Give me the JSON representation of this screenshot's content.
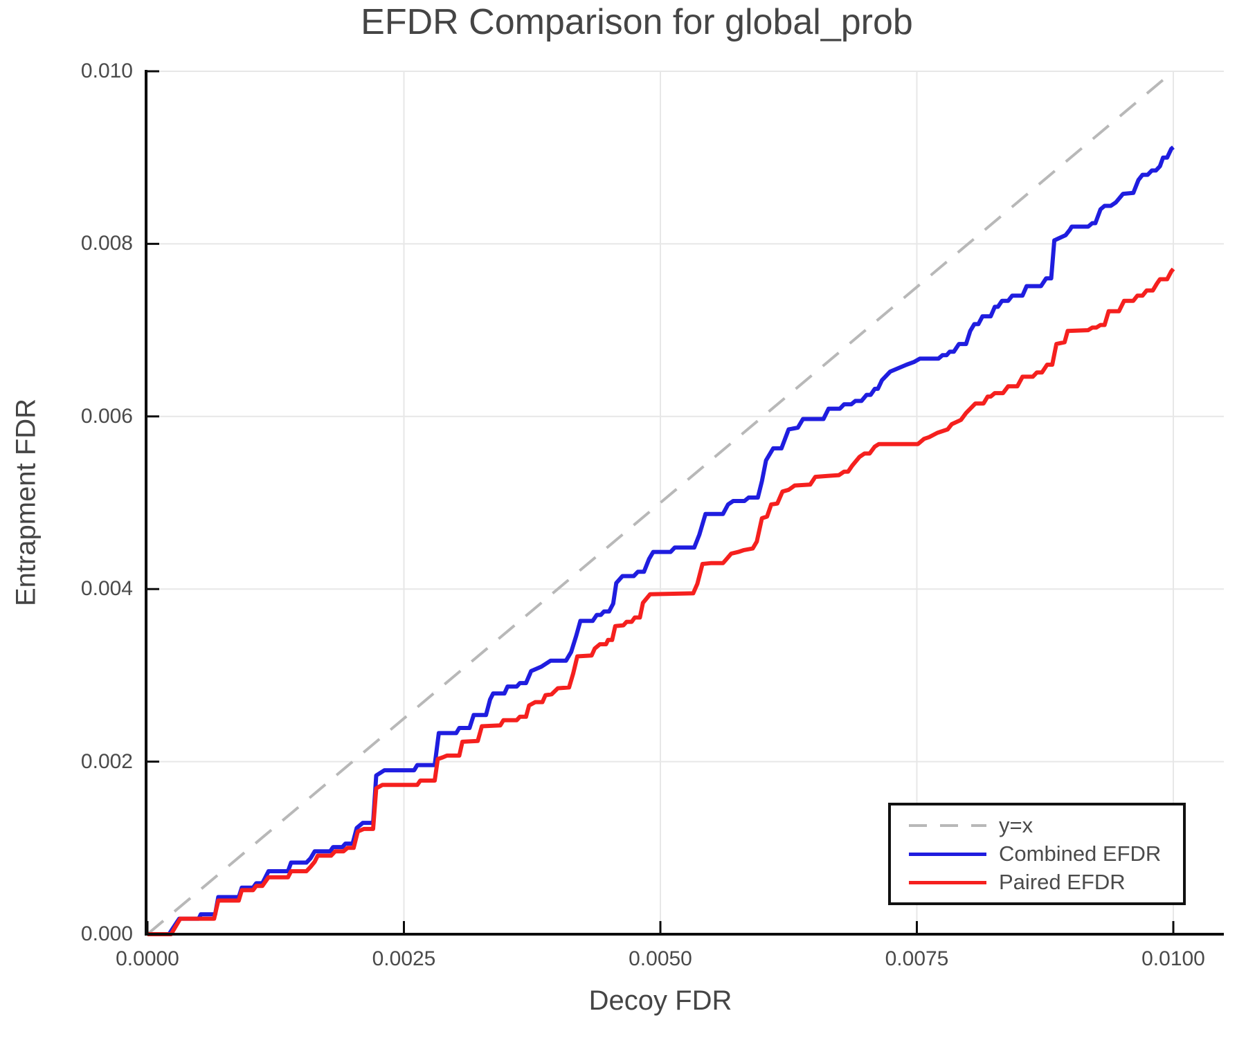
{
  "chart_data": {
    "type": "line",
    "title": "EFDR Comparison for global_prob",
    "xlabel": "Decoy FDR",
    "ylabel": "Entrapment FDR",
    "grid": true,
    "background": "#ffffff",
    "spine_color": "#0d0d0d",
    "grid_color": "#e7e7e7",
    "units_note": "series points are [x,y] in FDR units of 1e-4 (i.e. 100 = 0.0100)",
    "x_axis": {
      "range": [
        0,
        0.0105
      ],
      "tick_values": [
        0,
        25,
        50,
        75,
        100
      ],
      "tick_labels": [
        "0.0000",
        "0.0025",
        "0.0050",
        "0.0075",
        "0.0100"
      ]
    },
    "y_axis": {
      "range": [
        0,
        0.01
      ],
      "tick_values": [
        0,
        20,
        40,
        60,
        80,
        100
      ],
      "tick_labels": [
        "0.000",
        "0.002",
        "0.004",
        "0.006",
        "0.008",
        "0.010"
      ]
    },
    "legend": {
      "position": "bottom-right",
      "entries": [
        {
          "label": "y=x",
          "color": "#b8b8b8",
          "style": "dashed"
        },
        {
          "label": "Combined EFDR",
          "color": "#1f1ddf",
          "style": "solid"
        },
        {
          "label": "Paired EFDR",
          "color": "#f5201e",
          "style": "solid"
        }
      ]
    },
    "series": [
      {
        "name": "y=x",
        "color": "#b8b8b8",
        "dashed": true,
        "width": 4,
        "points": [
          [
            0,
            0
          ],
          [
            100,
            100
          ]
        ]
      },
      {
        "name": "Combined EFDR",
        "color": "#1f1ddf",
        "dashed": false,
        "width": 6,
        "points": [
          [
            0,
            0
          ],
          [
            2.1,
            0
          ],
          [
            3.1,
            1.8
          ],
          [
            5,
            1.8
          ],
          [
            5.2,
            2.3
          ],
          [
            6.6,
            2.3
          ],
          [
            6.9,
            4.3
          ],
          [
            8.9,
            4.3
          ],
          [
            9.2,
            5.4
          ],
          [
            10.3,
            5.4
          ],
          [
            10.6,
            5.9
          ],
          [
            11.2,
            5.9
          ],
          [
            11.8,
            7.3
          ],
          [
            13.7,
            7.3
          ],
          [
            14,
            8.3
          ],
          [
            15.5,
            8.3
          ],
          [
            15.9,
            8.8
          ],
          [
            16.3,
            9.6
          ],
          [
            17.8,
            9.6
          ],
          [
            18.1,
            10.1
          ],
          [
            19,
            10.1
          ],
          [
            19.3,
            10.5
          ],
          [
            20,
            10.5
          ],
          [
            20.4,
            12.3
          ],
          [
            21,
            12.9
          ],
          [
            22,
            12.9
          ],
          [
            22.3,
            18.4
          ],
          [
            23.1,
            19
          ],
          [
            26,
            19
          ],
          [
            26.3,
            19.6
          ],
          [
            28,
            19.6
          ],
          [
            28.4,
            23.3
          ],
          [
            30.1,
            23.3
          ],
          [
            30.4,
            23.9
          ],
          [
            31.4,
            23.9
          ],
          [
            31.8,
            25.4
          ],
          [
            33,
            25.4
          ],
          [
            33.4,
            27.2
          ],
          [
            33.7,
            27.9
          ],
          [
            34.8,
            27.9
          ],
          [
            35.1,
            28.7
          ],
          [
            36,
            28.7
          ],
          [
            36.3,
            29.1
          ],
          [
            36.9,
            29.1
          ],
          [
            37.4,
            30.5
          ],
          [
            38.4,
            31
          ],
          [
            39.3,
            31.7
          ],
          [
            40.8,
            31.7
          ],
          [
            41.3,
            32.7
          ],
          [
            41.8,
            34.6
          ],
          [
            42.2,
            36.3
          ],
          [
            43.4,
            36.3
          ],
          [
            43.8,
            37
          ],
          [
            44.2,
            37
          ],
          [
            44.5,
            37.4
          ],
          [
            45,
            37.4
          ],
          [
            45.4,
            38.3
          ],
          [
            45.7,
            40.7
          ],
          [
            46.3,
            41.5
          ],
          [
            47.4,
            41.5
          ],
          [
            47.8,
            42
          ],
          [
            48.4,
            42
          ],
          [
            48.9,
            43.5
          ],
          [
            49.3,
            44.3
          ],
          [
            51,
            44.3
          ],
          [
            51.4,
            44.8
          ],
          [
            53.3,
            44.8
          ],
          [
            53.8,
            46.3
          ],
          [
            54.4,
            48.7
          ],
          [
            56.1,
            48.7
          ],
          [
            56.6,
            49.8
          ],
          [
            57.1,
            50.2
          ],
          [
            58.2,
            50.2
          ],
          [
            58.6,
            50.6
          ],
          [
            59.5,
            50.6
          ],
          [
            59.9,
            52.5
          ],
          [
            60.3,
            54.9
          ],
          [
            61,
            56.3
          ],
          [
            61.8,
            56.3
          ],
          [
            62.5,
            58.5
          ],
          [
            63.4,
            58.7
          ],
          [
            63.9,
            59.7
          ],
          [
            65.9,
            59.7
          ],
          [
            66.4,
            60.9
          ],
          [
            67.5,
            60.9
          ],
          [
            67.9,
            61.4
          ],
          [
            68.6,
            61.4
          ],
          [
            69,
            61.8
          ],
          [
            69.6,
            61.8
          ],
          [
            70.1,
            62.5
          ],
          [
            70.5,
            62.5
          ],
          [
            70.9,
            63.2
          ],
          [
            71.2,
            63.2
          ],
          [
            71.6,
            64.2
          ],
          [
            72.4,
            65.2
          ],
          [
            74,
            66
          ],
          [
            74.7,
            66.3
          ],
          [
            75.3,
            66.7
          ],
          [
            77.1,
            66.7
          ],
          [
            77.5,
            67.1
          ],
          [
            77.9,
            67.1
          ],
          [
            78.2,
            67.5
          ],
          [
            78.6,
            67.5
          ],
          [
            79.1,
            68.4
          ],
          [
            79.8,
            68.4
          ],
          [
            80.2,
            69.9
          ],
          [
            80.6,
            70.7
          ],
          [
            81,
            70.7
          ],
          [
            81.4,
            71.6
          ],
          [
            82.2,
            71.6
          ],
          [
            82.6,
            72.7
          ],
          [
            82.9,
            72.7
          ],
          [
            83.3,
            73.4
          ],
          [
            83.9,
            73.4
          ],
          [
            84.3,
            74
          ],
          [
            85.3,
            74
          ],
          [
            85.7,
            75.1
          ],
          [
            87.1,
            75.1
          ],
          [
            87.6,
            76
          ],
          [
            88.1,
            76
          ],
          [
            88.4,
            80.4
          ],
          [
            89.5,
            81
          ],
          [
            89.9,
            81.6
          ],
          [
            90.1,
            82
          ],
          [
            91.7,
            82
          ],
          [
            92.1,
            82.4
          ],
          [
            92.4,
            82.4
          ],
          [
            92.9,
            84
          ],
          [
            93.3,
            84.4
          ],
          [
            93.9,
            84.4
          ],
          [
            94.4,
            84.8
          ],
          [
            95.1,
            85.8
          ],
          [
            96.1,
            85.9
          ],
          [
            96.6,
            87.4
          ],
          [
            97,
            88
          ],
          [
            97.5,
            88
          ],
          [
            97.9,
            88.5
          ],
          [
            98.3,
            88.5
          ],
          [
            98.7,
            89
          ],
          [
            99,
            90
          ],
          [
            99.4,
            90
          ],
          [
            99.8,
            91
          ],
          [
            100,
            91.2
          ]
        ]
      },
      {
        "name": "Paired EFDR",
        "color": "#f5201e",
        "dashed": false,
        "width": 6,
        "points": [
          [
            0,
            0
          ],
          [
            2.3,
            0
          ],
          [
            3.2,
            1.8
          ],
          [
            6.5,
            1.8
          ],
          [
            6.9,
            3.9
          ],
          [
            8.9,
            3.9
          ],
          [
            9.2,
            5.1
          ],
          [
            10.3,
            5.1
          ],
          [
            10.6,
            5.6
          ],
          [
            11.2,
            5.6
          ],
          [
            11.8,
            6.6
          ],
          [
            13.7,
            6.6
          ],
          [
            14,
            7.3
          ],
          [
            15.5,
            7.3
          ],
          [
            15.9,
            7.8
          ],
          [
            16.3,
            8.4
          ],
          [
            16.6,
            9.1
          ],
          [
            17.9,
            9.1
          ],
          [
            18.3,
            9.6
          ],
          [
            19.1,
            9.6
          ],
          [
            19.5,
            10
          ],
          [
            20.1,
            10
          ],
          [
            20.5,
            11.9
          ],
          [
            21.1,
            12.2
          ],
          [
            22,
            12.2
          ],
          [
            22.3,
            16.9
          ],
          [
            22.9,
            17.3
          ],
          [
            26.3,
            17.3
          ],
          [
            26.6,
            17.8
          ],
          [
            28,
            17.8
          ],
          [
            28.3,
            20.3
          ],
          [
            28.8,
            20.5
          ],
          [
            29.2,
            20.7
          ],
          [
            30.4,
            20.7
          ],
          [
            30.7,
            22.3
          ],
          [
            32.2,
            22.4
          ],
          [
            32.6,
            24.1
          ],
          [
            34.4,
            24.2
          ],
          [
            34.7,
            24.8
          ],
          [
            36,
            24.8
          ],
          [
            36.3,
            25.2
          ],
          [
            36.9,
            25.2
          ],
          [
            37.2,
            26.5
          ],
          [
            37.8,
            26.9
          ],
          [
            38.5,
            26.9
          ],
          [
            38.8,
            27.7
          ],
          [
            39.4,
            27.8
          ],
          [
            40,
            28.5
          ],
          [
            41.1,
            28.6
          ],
          [
            41.5,
            30.2
          ],
          [
            41.9,
            32.2
          ],
          [
            43.3,
            32.3
          ],
          [
            43.6,
            33.1
          ],
          [
            44.1,
            33.6
          ],
          [
            44.7,
            33.6
          ],
          [
            44.9,
            34.1
          ],
          [
            45.3,
            34.1
          ],
          [
            45.6,
            35.7
          ],
          [
            46.4,
            35.8
          ],
          [
            46.7,
            36.2
          ],
          [
            47.2,
            36.2
          ],
          [
            47.5,
            36.7
          ],
          [
            48,
            36.7
          ],
          [
            48.3,
            38.4
          ],
          [
            49,
            39.4
          ],
          [
            53.2,
            39.5
          ],
          [
            53.6,
            40.6
          ],
          [
            54.1,
            42.9
          ],
          [
            54.9,
            43
          ],
          [
            56.1,
            43
          ],
          [
            56.4,
            43.4
          ],
          [
            56.9,
            44.1
          ],
          [
            57.6,
            44.3
          ],
          [
            58.1,
            44.5
          ],
          [
            59,
            44.7
          ],
          [
            59.4,
            45.5
          ],
          [
            59.9,
            48.2
          ],
          [
            60.4,
            48.4
          ],
          [
            60.8,
            49.8
          ],
          [
            61.4,
            49.9
          ],
          [
            61.9,
            51.3
          ],
          [
            62.5,
            51.5
          ],
          [
            63.1,
            52
          ],
          [
            64.6,
            52.1
          ],
          [
            65.1,
            53
          ],
          [
            66.3,
            53.1
          ],
          [
            67.4,
            53.2
          ],
          [
            67.9,
            53.6
          ],
          [
            68.3,
            53.6
          ],
          [
            68.7,
            54.3
          ],
          [
            69.4,
            55.3
          ],
          [
            69.9,
            55.7
          ],
          [
            70.4,
            55.7
          ],
          [
            70.9,
            56.5
          ],
          [
            71.3,
            56.8
          ],
          [
            75.1,
            56.8
          ],
          [
            75.7,
            57.4
          ],
          [
            76.2,
            57.6
          ],
          [
            77,
            58.1
          ],
          [
            78,
            58.5
          ],
          [
            78.4,
            59.1
          ],
          [
            79.3,
            59.6
          ],
          [
            79.8,
            60.4
          ],
          [
            80.7,
            61.5
          ],
          [
            81.5,
            61.5
          ],
          [
            81.9,
            62.3
          ],
          [
            82.2,
            62.3
          ],
          [
            82.6,
            62.7
          ],
          [
            83.4,
            62.7
          ],
          [
            83.9,
            63.5
          ],
          [
            84.8,
            63.5
          ],
          [
            85.3,
            64.6
          ],
          [
            86.3,
            64.6
          ],
          [
            86.7,
            65.1
          ],
          [
            87.2,
            65.1
          ],
          [
            87.7,
            66
          ],
          [
            88.2,
            66
          ],
          [
            88.6,
            68.4
          ],
          [
            89.4,
            68.6
          ],
          [
            89.7,
            69.9
          ],
          [
            91.7,
            70
          ],
          [
            92.1,
            70.3
          ],
          [
            92.5,
            70.3
          ],
          [
            92.9,
            70.6
          ],
          [
            93.3,
            70.6
          ],
          [
            93.7,
            72.2
          ],
          [
            94.7,
            72.2
          ],
          [
            95.2,
            73.4
          ],
          [
            96.1,
            73.4
          ],
          [
            96.5,
            74
          ],
          [
            97,
            74
          ],
          [
            97.4,
            74.6
          ],
          [
            98,
            74.6
          ],
          [
            98.4,
            75.4
          ],
          [
            98.7,
            75.9
          ],
          [
            99.4,
            75.9
          ],
          [
            99.8,
            76.8
          ],
          [
            100,
            77.1
          ]
        ]
      }
    ]
  }
}
